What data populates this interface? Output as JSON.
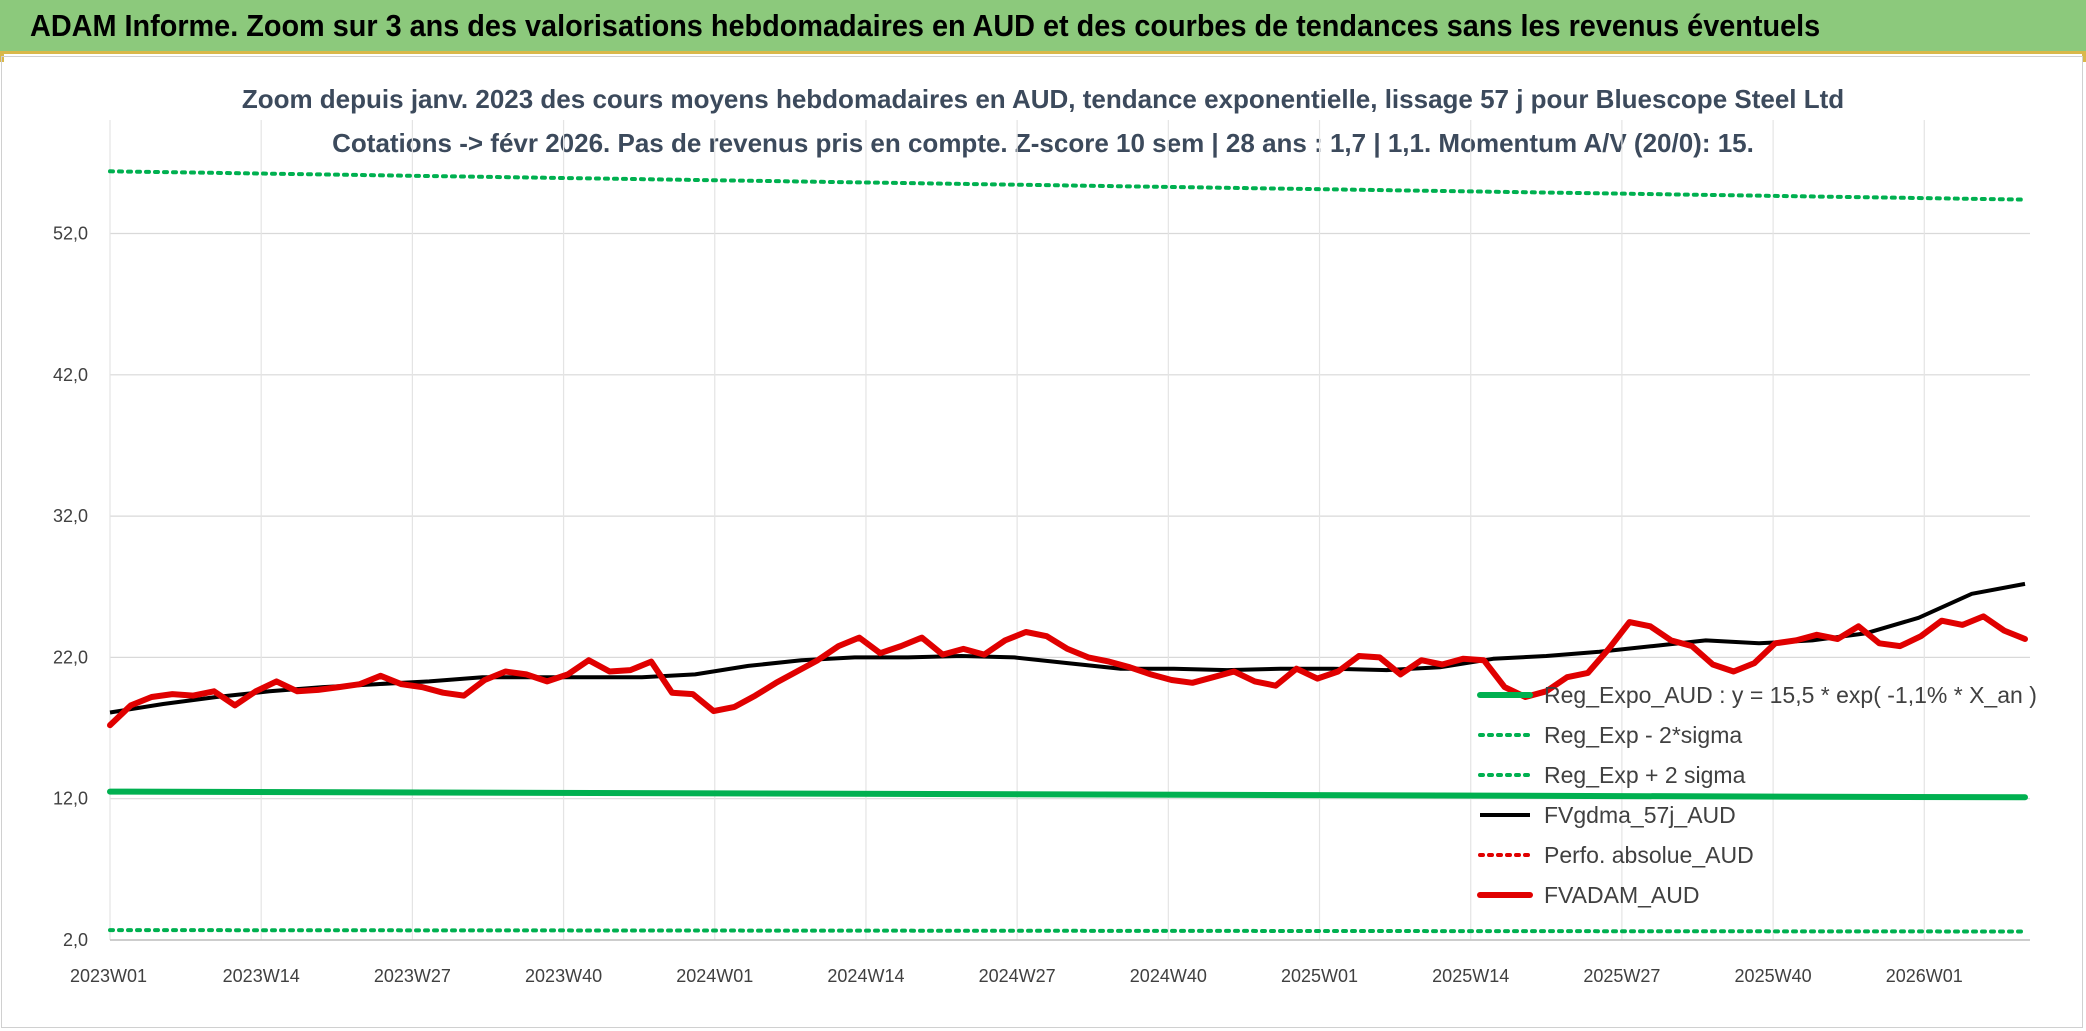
{
  "header": {
    "title": "ADAM Informe. Zoom sur 3 ans des valorisations hebdomadaires en AUD et des courbes de tendances sans les revenus éventuels"
  },
  "colors": {
    "header_bg": "#8cc97c",
    "green": "#00b050",
    "red": "#e00000",
    "black": "#000000"
  },
  "chart_data": {
    "type": "line",
    "title_line1": "Zoom depuis janv. 2023 des cours moyens hebdomadaires en AUD, tendance exponentielle, lissage 57 j pour Bluescope Steel Ltd",
    "title_line2": "Cotations -> févr 2026. Pas de revenus pris en compte. Z-score 10 sem | 28 ans : 1,7 | 1,1. Momentum A/V (20/0): 15.",
    "ylim": [
      2,
      60
    ],
    "y_ticks": [
      {
        "value": 2,
        "label": "2,0"
      },
      {
        "value": 12,
        "label": "12,0"
      },
      {
        "value": 22,
        "label": "22,0"
      },
      {
        "value": 32,
        "label": "32,0"
      },
      {
        "value": 42,
        "label": "42,0"
      },
      {
        "value": 52,
        "label": "52,0"
      }
    ],
    "x_tick_labels": [
      "2023W01",
      "2023W14",
      "2023W27",
      "2023W40",
      "2024W01",
      "2024W14",
      "2024W27",
      "2024W40",
      "2025W01",
      "2025W14",
      "2025W27",
      "2025W40",
      "2026W01"
    ],
    "x_tick_step_weeks": 13,
    "num_weeks": 165,
    "grid": true,
    "legend_position": "right",
    "series": [
      {
        "name": "Reg_Expo_AUD : y = 15,5 * exp( -1,1% *  X_an )",
        "style": "solid-thick",
        "color": "#00b050",
        "key_points": [
          [
            0,
            12.5
          ],
          [
            165,
            12.1
          ]
        ]
      },
      {
        "name": "Reg_Exp - 2*sigma",
        "style": "dotted",
        "color": "#00b050",
        "key_points": [
          [
            0,
            2.7
          ],
          [
            165,
            2.6
          ]
        ]
      },
      {
        "name": "Reg_Exp + 2 sigma",
        "style": "dotted",
        "color": "#00b050",
        "key_points": [
          [
            0,
            56.4
          ],
          [
            165,
            54.4
          ]
        ]
      },
      {
        "name": "FVgdma_57j_AUD",
        "style": "solid",
        "color": "#000000",
        "key_points": [
          [
            0,
            18.1
          ],
          [
            5,
            18.7
          ],
          [
            10,
            19.2
          ],
          [
            15,
            19.6
          ],
          [
            20,
            19.9
          ],
          [
            25,
            20.1
          ],
          [
            30,
            20.3
          ],
          [
            35,
            20.6
          ],
          [
            40,
            20.6
          ],
          [
            45,
            20.6
          ],
          [
            50,
            20.6
          ],
          [
            55,
            20.8
          ],
          [
            60,
            21.4
          ],
          [
            65,
            21.8
          ],
          [
            70,
            22.0
          ],
          [
            75,
            22.0
          ],
          [
            80,
            22.1
          ],
          [
            85,
            22.0
          ],
          [
            90,
            21.6
          ],
          [
            95,
            21.2
          ],
          [
            100,
            21.2
          ],
          [
            105,
            21.1
          ],
          [
            110,
            21.2
          ],
          [
            115,
            21.2
          ],
          [
            120,
            21.1
          ],
          [
            125,
            21.3
          ],
          [
            130,
            21.9
          ],
          [
            135,
            22.1
          ],
          [
            140,
            22.4
          ],
          [
            145,
            22.8
          ],
          [
            150,
            23.2
          ],
          [
            155,
            23.0
          ],
          [
            160,
            23.2
          ],
          [
            165,
            23.7
          ],
          [
            170,
            24.8
          ],
          [
            175,
            26.5
          ],
          [
            180,
            27.2
          ]
        ]
      },
      {
        "name": "Perfo. absolue_AUD",
        "style": "dotted",
        "color": "#e00000",
        "key_points": []
      },
      {
        "name": "FVADAM_AUD",
        "style": "solid-thick",
        "color": "#e00000",
        "key_points": [
          [
            0,
            17.2
          ],
          [
            2,
            18.6
          ],
          [
            4,
            19.2
          ],
          [
            6,
            19.4
          ],
          [
            8,
            19.3
          ],
          [
            10,
            19.6
          ],
          [
            12,
            18.6
          ],
          [
            14,
            19.6
          ],
          [
            16,
            20.3
          ],
          [
            18,
            19.6
          ],
          [
            20,
            19.7
          ],
          [
            22,
            19.9
          ],
          [
            24,
            20.1
          ],
          [
            26,
            20.7
          ],
          [
            28,
            20.1
          ],
          [
            30,
            19.9
          ],
          [
            32,
            19.5
          ],
          [
            34,
            19.3
          ],
          [
            36,
            20.4
          ],
          [
            38,
            21.0
          ],
          [
            40,
            20.8
          ],
          [
            42,
            20.3
          ],
          [
            44,
            20.8
          ],
          [
            46,
            21.8
          ],
          [
            48,
            21.0
          ],
          [
            50,
            21.1
          ],
          [
            52,
            21.7
          ],
          [
            54,
            19.5
          ],
          [
            56,
            19.4
          ],
          [
            58,
            18.2
          ],
          [
            60,
            18.5
          ],
          [
            62,
            19.3
          ],
          [
            64,
            20.2
          ],
          [
            66,
            21.0
          ],
          [
            68,
            21.8
          ],
          [
            70,
            22.8
          ],
          [
            72,
            23.4
          ],
          [
            74,
            22.3
          ],
          [
            76,
            22.8
          ],
          [
            78,
            23.4
          ],
          [
            80,
            22.2
          ],
          [
            82,
            22.6
          ],
          [
            84,
            22.2
          ],
          [
            86,
            23.2
          ],
          [
            88,
            23.8
          ],
          [
            90,
            23.5
          ],
          [
            92,
            22.6
          ],
          [
            94,
            22.0
          ],
          [
            96,
            21.7
          ],
          [
            98,
            21.3
          ],
          [
            100,
            20.8
          ],
          [
            102,
            20.4
          ],
          [
            104,
            20.2
          ],
          [
            106,
            20.6
          ],
          [
            108,
            21.0
          ],
          [
            110,
            20.3
          ],
          [
            112,
            20.0
          ],
          [
            114,
            21.2
          ],
          [
            116,
            20.5
          ],
          [
            118,
            21.0
          ],
          [
            120,
            22.1
          ],
          [
            122,
            22.0
          ],
          [
            124,
            20.8
          ],
          [
            126,
            21.8
          ],
          [
            128,
            21.5
          ],
          [
            130,
            21.9
          ],
          [
            132,
            21.8
          ],
          [
            134,
            19.9
          ],
          [
            136,
            19.2
          ],
          [
            138,
            19.6
          ],
          [
            140,
            20.6
          ],
          [
            142,
            20.9
          ],
          [
            144,
            22.6
          ],
          [
            146,
            24.5
          ],
          [
            148,
            24.2
          ],
          [
            150,
            23.2
          ],
          [
            152,
            22.8
          ],
          [
            154,
            21.5
          ],
          [
            156,
            21.0
          ],
          [
            158,
            21.6
          ],
          [
            160,
            23.0
          ],
          [
            162,
            23.2
          ],
          [
            164,
            23.6
          ],
          [
            166,
            23.3
          ],
          [
            168,
            24.2
          ],
          [
            170,
            23.0
          ],
          [
            172,
            22.8
          ],
          [
            174,
            23.5
          ],
          [
            176,
            24.6
          ],
          [
            178,
            24.3
          ],
          [
            180,
            24.9
          ],
          [
            182,
            23.9
          ],
          [
            184,
            23.3
          ]
        ]
      }
    ]
  }
}
